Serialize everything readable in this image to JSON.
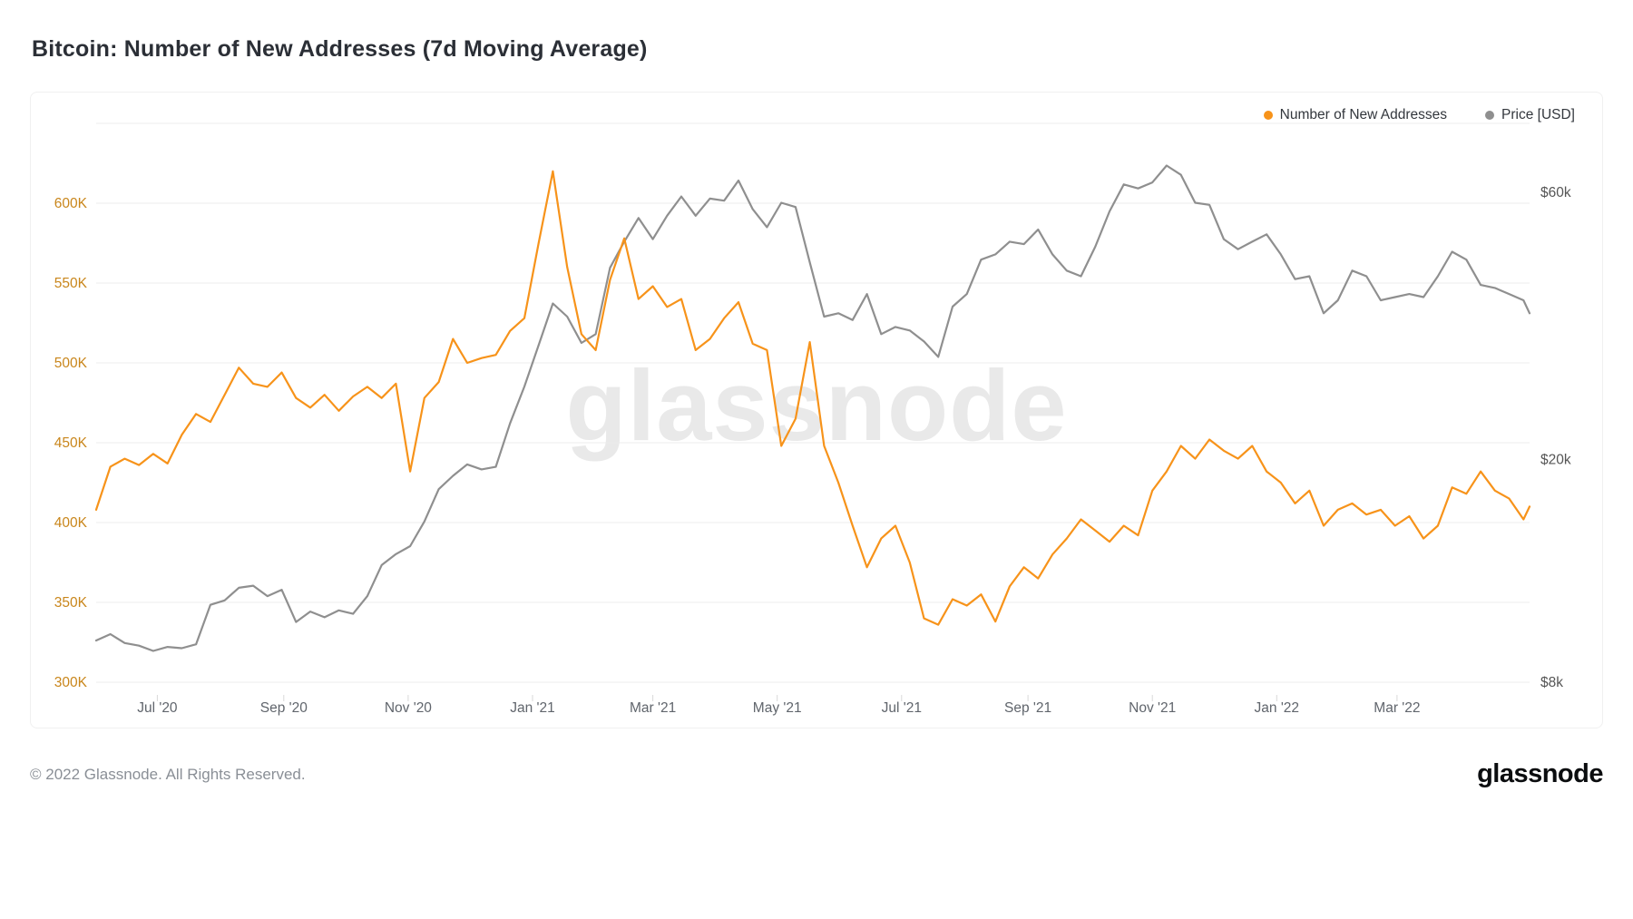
{
  "page": {
    "title": "Bitcoin: Number of New Addresses (7d Moving Average)",
    "footer_copyright": "© 2022 Glassnode. All Rights Reserved.",
    "brand_logo": "glassnode",
    "watermark": "glassnode"
  },
  "legend": [
    {
      "label": "Number of New Addresses",
      "color": "#F7931A"
    },
    {
      "label": "Price [USD]",
      "color": "#8F8F8F"
    }
  ],
  "chart_data": {
    "type": "line",
    "title": "Bitcoin: Number of New Addresses (7d Moving Average)",
    "grid": true,
    "legend_position": "top-right",
    "x_range": [
      "2020-06-01",
      "2022-05-05"
    ],
    "x": [
      "2020-06-01",
      "2020-06-08",
      "2020-06-15",
      "2020-06-22",
      "2020-06-29",
      "2020-07-06",
      "2020-07-13",
      "2020-07-20",
      "2020-07-27",
      "2020-08-03",
      "2020-08-10",
      "2020-08-17",
      "2020-08-24",
      "2020-08-31",
      "2020-09-07",
      "2020-09-14",
      "2020-09-21",
      "2020-09-28",
      "2020-10-05",
      "2020-10-12",
      "2020-10-19",
      "2020-10-26",
      "2020-11-02",
      "2020-11-09",
      "2020-11-16",
      "2020-11-23",
      "2020-11-30",
      "2020-12-07",
      "2020-12-14",
      "2020-12-21",
      "2020-12-28",
      "2021-01-04",
      "2021-01-11",
      "2021-01-18",
      "2021-01-25",
      "2021-02-01",
      "2021-02-08",
      "2021-02-15",
      "2021-02-22",
      "2021-03-01",
      "2021-03-08",
      "2021-03-15",
      "2021-03-22",
      "2021-03-29",
      "2021-04-05",
      "2021-04-12",
      "2021-04-19",
      "2021-04-26",
      "2021-05-03",
      "2021-05-10",
      "2021-05-17",
      "2021-05-24",
      "2021-05-31",
      "2021-06-07",
      "2021-06-14",
      "2021-06-21",
      "2021-06-28",
      "2021-07-05",
      "2021-07-12",
      "2021-07-19",
      "2021-07-26",
      "2021-08-02",
      "2021-08-09",
      "2021-08-16",
      "2021-08-23",
      "2021-08-30",
      "2021-09-06",
      "2021-09-13",
      "2021-09-20",
      "2021-09-27",
      "2021-10-04",
      "2021-10-11",
      "2021-10-18",
      "2021-10-25",
      "2021-11-01",
      "2021-11-08",
      "2021-11-15",
      "2021-11-22",
      "2021-11-29",
      "2021-12-06",
      "2021-12-13",
      "2021-12-20",
      "2021-12-27",
      "2022-01-03",
      "2022-01-10",
      "2022-01-17",
      "2022-01-24",
      "2022-01-31",
      "2022-02-07",
      "2022-02-14",
      "2022-02-21",
      "2022-02-28",
      "2022-03-07",
      "2022-03-14",
      "2022-03-21",
      "2022-03-28",
      "2022-04-04",
      "2022-04-11",
      "2022-04-18",
      "2022-04-25",
      "2022-05-02",
      "2022-05-05"
    ],
    "series": [
      {
        "name": "Number of New Addresses",
        "axis": "left",
        "color": "#F7931A",
        "values": [
          408000,
          435000,
          440000,
          436000,
          443000,
          437000,
          455000,
          468000,
          463000,
          480000,
          497000,
          487000,
          485000,
          494000,
          478000,
          472000,
          480000,
          470000,
          479000,
          485000,
          478000,
          487000,
          432000,
          478000,
          488000,
          515000,
          500000,
          503000,
          505000,
          520000,
          528000,
          575000,
          620000,
          560000,
          518000,
          508000,
          552000,
          578000,
          540000,
          548000,
          535000,
          540000,
          508000,
          515000,
          528000,
          538000,
          512000,
          508000,
          448000,
          465000,
          513000,
          448000,
          425000,
          398000,
          372000,
          390000,
          398000,
          375000,
          340000,
          336000,
          352000,
          348000,
          355000,
          338000,
          360000,
          372000,
          365000,
          380000,
          390000,
          402000,
          395000,
          388000,
          398000,
          392000,
          420000,
          432000,
          448000,
          440000,
          452000,
          445000,
          440000,
          448000,
          432000,
          425000,
          412000,
          420000,
          398000,
          408000,
          412000,
          405000,
          408000,
          398000,
          404000,
          390000,
          398000,
          422000,
          418000,
          432000,
          420000,
          415000,
          402000,
          410000
        ]
      },
      {
        "name": "Price [USD]",
        "axis": "right",
        "color": "#8F8F8F",
        "values": [
          9500,
          9750,
          9400,
          9300,
          9100,
          9250,
          9200,
          9350,
          11000,
          11200,
          11800,
          11900,
          11400,
          11700,
          10250,
          10700,
          10450,
          10750,
          10600,
          11400,
          12950,
          13550,
          14000,
          15500,
          17700,
          18700,
          19600,
          19200,
          19400,
          23200,
          27000,
          32000,
          38000,
          36000,
          32300,
          33500,
          44000,
          49000,
          54000,
          49500,
          54500,
          59000,
          54500,
          58500,
          58000,
          63000,
          56000,
          52000,
          57500,
          56500,
          45000,
          36000,
          36500,
          35500,
          39500,
          33500,
          34500,
          34000,
          32500,
          30500,
          37500,
          39500,
          45500,
          46500,
          49000,
          48500,
          51500,
          46500,
          43500,
          42500,
          48000,
          55500,
          62000,
          61000,
          62500,
          67000,
          64500,
          57500,
          57000,
          49500,
          47500,
          49000,
          50500,
          46500,
          42000,
          42500,
          36500,
          38500,
          43500,
          42500,
          38500,
          39000,
          39500,
          39000,
          42500,
          47000,
          45500,
          41000,
          40500,
          39500,
          38500,
          36500
        ]
      }
    ],
    "left_axis": {
      "tick_labels": [
        "300K",
        "350K",
        "400K",
        "450K",
        "500K",
        "550K",
        "600K"
      ],
      "tick_values": [
        300000,
        350000,
        400000,
        450000,
        500000,
        550000,
        600000
      ],
      "grid_values": [
        300000,
        350000,
        400000,
        450000,
        500000,
        550000,
        600000,
        650000
      ],
      "range": [
        300000,
        650000
      ],
      "label_color": "#C9861B"
    },
    "right_axis": {
      "scale": "log",
      "tick_labels": [
        "$8k",
        "$20k",
        "$60k"
      ],
      "tick_values": [
        8000,
        20000,
        60000
      ],
      "range": [
        8000,
        75000
      ],
      "label_color": "#555555"
    },
    "x_ticks": [
      {
        "label": "Jul '20",
        "date": "2020-07-01"
      },
      {
        "label": "Sep '20",
        "date": "2020-09-01"
      },
      {
        "label": "Nov '20",
        "date": "2020-11-01"
      },
      {
        "label": "Jan '21",
        "date": "2021-01-01"
      },
      {
        "label": "Mar '21",
        "date": "2021-03-01"
      },
      {
        "label": "May '21",
        "date": "2021-05-01"
      },
      {
        "label": "Jul '21",
        "date": "2021-07-01"
      },
      {
        "label": "Sep '21",
        "date": "2021-09-01"
      },
      {
        "label": "Nov '21",
        "date": "2021-11-01"
      },
      {
        "label": "Jan '22",
        "date": "2022-01-01"
      },
      {
        "label": "Mar '22",
        "date": "2022-03-01"
      }
    ]
  }
}
